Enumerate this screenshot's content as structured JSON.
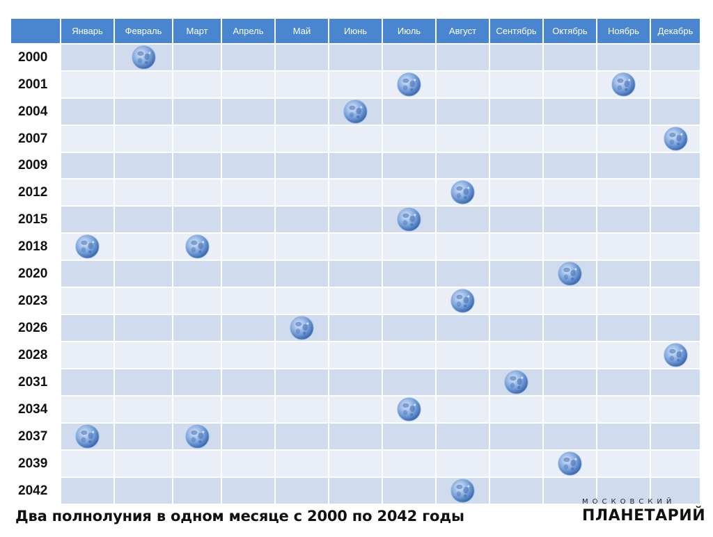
{
  "colors": {
    "header": "#4a86cf",
    "row_odd": "#d0dbee",
    "row_even": "#e9eef7",
    "moon": "#4f7fca"
  },
  "icon": "full-moon-icon",
  "caption": "Два полнолуния в одном месяце с 2000 по 2042 годы",
  "logo": {
    "top": "МОСКОВСКИЙ",
    "main": "ПЛАНЕТАРИЙ"
  },
  "chart_data": {
    "type": "table",
    "columns": [
      "Январь",
      "Февраль",
      "Март",
      "Апрель",
      "Май",
      "Июнь",
      "Июль",
      "Август",
      "Сентябрь",
      "Октябрь",
      "Ноябрь",
      "Декабрь"
    ],
    "rows": [
      {
        "year": "2000",
        "months": [
          2
        ]
      },
      {
        "year": "2001",
        "months": [
          7,
          11
        ]
      },
      {
        "year": "2004",
        "months": [
          6
        ]
      },
      {
        "year": "2007",
        "months": [
          12
        ]
      },
      {
        "year": "2009",
        "months": []
      },
      {
        "year": "2012",
        "months": [
          8
        ]
      },
      {
        "year": "2015",
        "months": [
          7
        ]
      },
      {
        "year": "2018",
        "months": [
          1,
          3
        ]
      },
      {
        "year": "2020",
        "months": [
          10
        ]
      },
      {
        "year": "2023",
        "months": [
          8
        ]
      },
      {
        "year": "2026",
        "months": [
          5
        ]
      },
      {
        "year": "2028",
        "months": [
          12
        ]
      },
      {
        "year": "2031",
        "months": [
          9
        ]
      },
      {
        "year": "2034",
        "months": [
          7
        ]
      },
      {
        "year": "2037",
        "months": [
          1,
          3
        ]
      },
      {
        "year": "2039",
        "months": [
          10
        ]
      },
      {
        "year": "2042",
        "months": [
          8
        ]
      }
    ]
  }
}
